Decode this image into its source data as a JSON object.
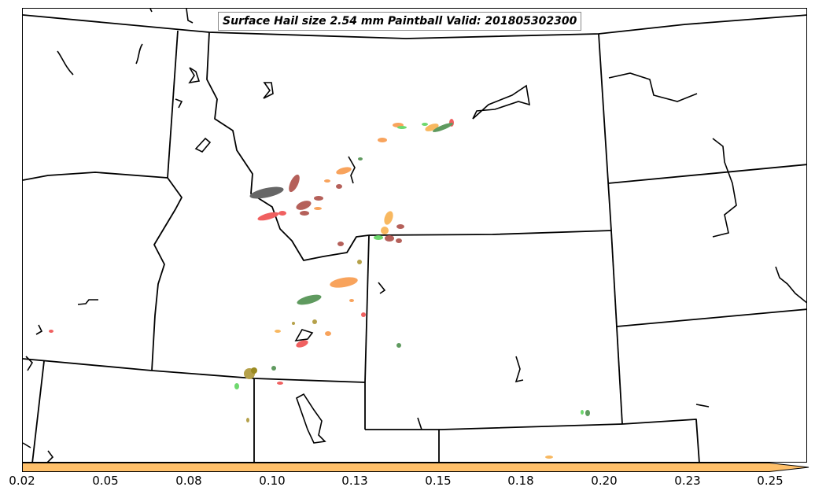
{
  "map": {
    "title": "Surface Hail size 2.54 mm Paintball Valid: 201805302300",
    "region": "US Northern Rockies / Intermountain West"
  },
  "colorbar": {
    "fill_color": "#ffc06a",
    "ticks": [
      "0.02",
      "0.05",
      "0.08",
      "0.10",
      "0.13",
      "0.15",
      "0.18",
      "0.20",
      "0.23",
      "0.25"
    ]
  },
  "paintball_colors": {
    "dark_gray": "#666666",
    "brown_red": "#b5605a",
    "red": "#f06060",
    "orange": "#f8a35c",
    "light_orange": "#f8b860",
    "dark_green": "#5f9a5f",
    "light_green": "#6ed86e",
    "olive": "#b5a14a"
  }
}
